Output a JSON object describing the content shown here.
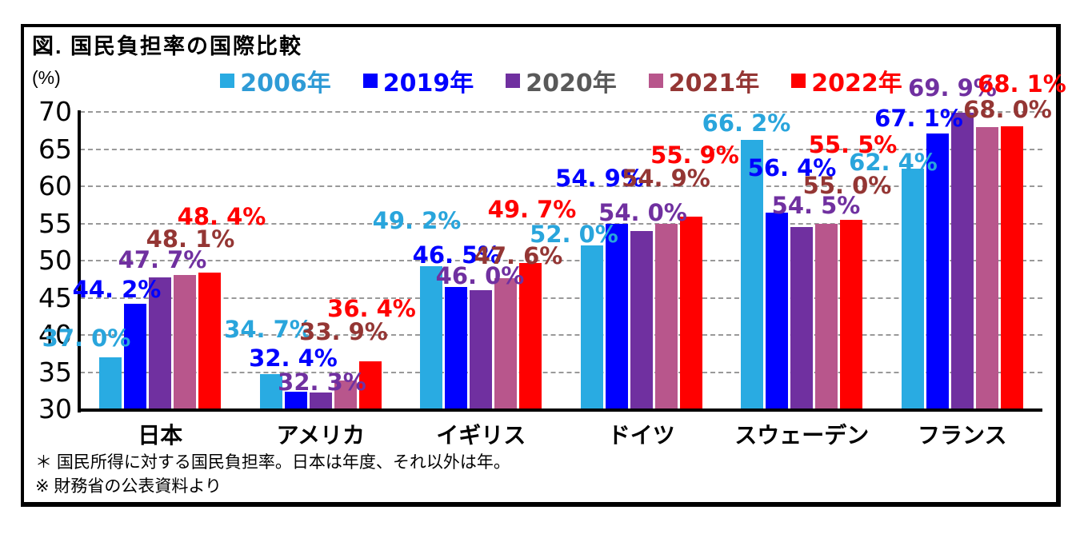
{
  "figure": {
    "title": "図. 国民負担率の国際比較",
    "y_axis_unit": "(%)",
    "footnotes": [
      "＊ 国民所得に対する国民負担率。日本は年度、それ以外は年。",
      "※ 財務省の公表資料より"
    ]
  },
  "chart_data": {
    "type": "bar",
    "title": "図. 国民負担率の国際比較",
    "categories": [
      "日本",
      "アメリカ",
      "イギリス",
      "ドイツ",
      "スウェーデン",
      "フランス"
    ],
    "series": [
      {
        "name": "2006年",
        "color": "#29ABE2",
        "label_color": "#29A5DC",
        "legend_text_color": "#2E9BD6",
        "values": [
          37.0,
          34.7,
          49.2,
          52.0,
          66.2,
          62.4
        ]
      },
      {
        "name": "2019年",
        "color": "#0000FF",
        "label_color": "#0000FF",
        "legend_text_color": "#0000FF",
        "values": [
          44.2,
          32.4,
          46.5,
          54.9,
          56.4,
          67.1
        ]
      },
      {
        "name": "2020年",
        "color": "#7030A0",
        "label_color": "#7030A0",
        "legend_text_color": "#595959",
        "values": [
          47.7,
          32.3,
          46.0,
          54.0,
          54.5,
          69.9
        ]
      },
      {
        "name": "2021年",
        "color": "#B8568C",
        "label_color": "#943634",
        "legend_text_color": "#943634",
        "values": [
          48.1,
          33.9,
          47.6,
          54.9,
          55.0,
          68.0
        ]
      },
      {
        "name": "2022年",
        "color": "#FF0000",
        "label_color": "#FF0000",
        "legend_text_color": "#FF0000",
        "values": [
          48.4,
          36.4,
          49.7,
          55.9,
          55.5,
          68.1
        ]
      }
    ],
    "ylim": [
      30,
      70
    ],
    "ytick_step": 5,
    "grid": "horizontal-dashed",
    "legend_position": "top",
    "value_suffix": "%",
    "value_label_format": "one-decimal-percent"
  }
}
